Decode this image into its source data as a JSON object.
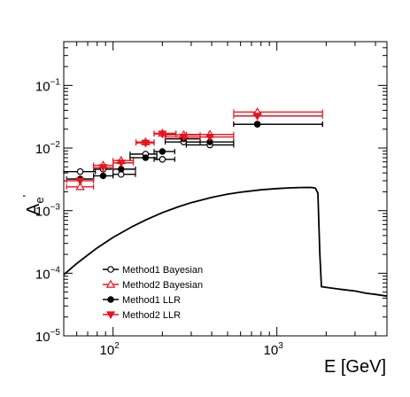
{
  "chart_data": {
    "type": "scatter",
    "xlabel": "E [GeV]",
    "ylabel_base": "A",
    "ylabel_sub": "e",
    "ylabel_sup": "'",
    "x_scale": "log",
    "y_scale": "log",
    "xlim": [
      50,
      4700
    ],
    "ylim": [
      1e-05,
      0.5
    ],
    "x_ticks": [
      {
        "value": 100,
        "base": "10",
        "exp": "2"
      },
      {
        "value": 1000,
        "base": "10",
        "exp": "3"
      }
    ],
    "y_ticks": [
      {
        "value": 1e-05,
        "base": "10",
        "exp": "−5"
      },
      {
        "value": 0.0001,
        "base": "10",
        "exp": "−4"
      },
      {
        "value": 0.001,
        "base": "10",
        "exp": "−3"
      },
      {
        "value": 0.01,
        "base": "10",
        "exp": "−2"
      },
      {
        "value": 0.1,
        "base": "10",
        "exp": "−1"
      }
    ],
    "grid": false,
    "legend_position": "bottom-left",
    "series": [
      {
        "name": "Method1 Bayesian",
        "color": "#000000",
        "marker": "open-circle",
        "points": [
          {
            "x": 63,
            "xlo": 50,
            "xhi": 78,
            "y": 0.0042,
            "ylo": 0.0038,
            "yhi": 0.0046
          },
          {
            "x": 87,
            "xlo": 76,
            "xhi": 100,
            "y": 0.0046,
            "ylo": 0.0043,
            "yhi": 0.0049
          },
          {
            "x": 112,
            "xlo": 100,
            "xhi": 137,
            "y": 0.0038,
            "ylo": 0.0036,
            "yhi": 0.004
          },
          {
            "x": 158,
            "xlo": 127,
            "xhi": 185,
            "y": 0.008,
            "ylo": 0.0076,
            "yhi": 0.0084
          },
          {
            "x": 200,
            "xlo": 178,
            "xhi": 238,
            "y": 0.0066,
            "ylo": 0.0063,
            "yhi": 0.0069
          },
          {
            "x": 270,
            "xlo": 208,
            "xhi": 340,
            "y": 0.0125,
            "ylo": 0.012,
            "yhi": 0.013
          },
          {
            "x": 390,
            "xlo": 280,
            "xhi": 545,
            "y": 0.0112,
            "ylo": 0.0108,
            "yhi": 0.0116
          },
          {
            "x": 760,
            "xlo": 545,
            "xhi": 1900,
            "y": 0.024,
            "ylo": 0.0232,
            "yhi": 0.0248
          }
        ]
      },
      {
        "name": "Method2 Bayesian",
        "color": "#e8141e",
        "marker": "open-triangle",
        "points": [
          {
            "x": 63,
            "xlo": 52,
            "xhi": 76,
            "y": 0.0024,
            "ylo": 0.0022,
            "yhi": 0.0026
          },
          {
            "x": 87,
            "xlo": 76,
            "xhi": 100,
            "y": 0.0053,
            "ylo": 0.005,
            "yhi": 0.0056
          },
          {
            "x": 112,
            "xlo": 100,
            "xhi": 133,
            "y": 0.0063,
            "ylo": 0.006,
            "yhi": 0.0066
          },
          {
            "x": 158,
            "xlo": 138,
            "xhi": 178,
            "y": 0.0125,
            "ylo": 0.012,
            "yhi": 0.013
          },
          {
            "x": 200,
            "xlo": 178,
            "xhi": 242,
            "y": 0.0172,
            "ylo": 0.0166,
            "yhi": 0.0178
          },
          {
            "x": 270,
            "xlo": 208,
            "xhi": 340,
            "y": 0.0162,
            "ylo": 0.0156,
            "yhi": 0.0168
          },
          {
            "x": 390,
            "xlo": 280,
            "xhi": 545,
            "y": 0.0165,
            "ylo": 0.0159,
            "yhi": 0.0171
          },
          {
            "x": 760,
            "xlo": 545,
            "xhi": 1900,
            "y": 0.0375,
            "ylo": 0.0362,
            "yhi": 0.0388
          }
        ]
      },
      {
        "name": "Method1 LLR",
        "color": "#000000",
        "marker": "filled-circle",
        "points": [
          {
            "x": 63,
            "xlo": 52,
            "xhi": 76,
            "y": 0.0032,
            "ylo": 0.003,
            "yhi": 0.0034
          },
          {
            "x": 87,
            "xlo": 76,
            "xhi": 100,
            "y": 0.0036,
            "ylo": 0.0034,
            "yhi": 0.0038
          },
          {
            "x": 112,
            "xlo": 100,
            "xhi": 137,
            "y": 0.0046,
            "ylo": 0.0044,
            "yhi": 0.0048
          },
          {
            "x": 158,
            "xlo": 127,
            "xhi": 185,
            "y": 0.007,
            "ylo": 0.0067,
            "yhi": 0.0073
          },
          {
            "x": 200,
            "xlo": 178,
            "xhi": 238,
            "y": 0.0088,
            "ylo": 0.0085,
            "yhi": 0.0091
          },
          {
            "x": 270,
            "xlo": 208,
            "xhi": 340,
            "y": 0.014,
            "ylo": 0.0135,
            "yhi": 0.0145
          },
          {
            "x": 390,
            "xlo": 280,
            "xhi": 545,
            "y": 0.0125,
            "ylo": 0.012,
            "yhi": 0.013
          },
          {
            "x": 760,
            "xlo": 545,
            "xhi": 1900,
            "y": 0.024,
            "ylo": 0.0232,
            "yhi": 0.0248
          }
        ]
      },
      {
        "name": "Method2 LLR",
        "color": "#e8141e",
        "marker": "filled-triangle-down",
        "points": [
          {
            "x": 63,
            "xlo": 52,
            "xhi": 76,
            "y": 0.003,
            "ylo": 0.0028,
            "yhi": 0.0032
          },
          {
            "x": 87,
            "xlo": 76,
            "xhi": 100,
            "y": 0.0049,
            "ylo": 0.0046,
            "yhi": 0.0052
          },
          {
            "x": 112,
            "xlo": 100,
            "xhi": 133,
            "y": 0.0058,
            "ylo": 0.0055,
            "yhi": 0.0061
          },
          {
            "x": 158,
            "xlo": 138,
            "xhi": 178,
            "y": 0.012,
            "ylo": 0.0115,
            "yhi": 0.0125
          },
          {
            "x": 200,
            "xlo": 178,
            "xhi": 242,
            "y": 0.0168,
            "ylo": 0.0162,
            "yhi": 0.0174
          },
          {
            "x": 270,
            "xlo": 208,
            "xhi": 340,
            "y": 0.015,
            "ylo": 0.0145,
            "yhi": 0.0155
          },
          {
            "x": 390,
            "xlo": 280,
            "xhi": 545,
            "y": 0.015,
            "ylo": 0.0145,
            "yhi": 0.0155
          },
          {
            "x": 760,
            "xlo": 545,
            "xhi": 1900,
            "y": 0.0325,
            "ylo": 0.0314,
            "yhi": 0.0336
          }
        ]
      }
    ],
    "curve": {
      "color": "#000000",
      "points": [
        [
          50,
          9.5e-05
        ],
        [
          60,
          0.000143
        ],
        [
          70,
          0.000195
        ],
        [
          80,
          0.000254
        ],
        [
          100,
          0.000374
        ],
        [
          130,
          0.00055
        ],
        [
          160,
          0.00072
        ],
        [
          200,
          0.00093
        ],
        [
          250,
          0.00115
        ],
        [
          300,
          0.00134
        ],
        [
          400,
          0.00163
        ],
        [
          500,
          0.00183
        ],
        [
          600,
          0.00197
        ],
        [
          800,
          0.00215
        ],
        [
          1000,
          0.00225
        ],
        [
          1200,
          0.00231
        ],
        [
          1400,
          0.00234
        ],
        [
          1550,
          0.00235
        ],
        [
          1650,
          0.00234
        ],
        [
          1720,
          0.00228
        ],
        [
          1780,
          0.0019
        ],
        [
          1830,
          0.0002
        ],
        [
          1870,
          6.1e-05
        ],
        [
          1950,
          6e-05
        ],
        [
          2500,
          5.5e-05
        ],
        [
          3000,
          5.2e-05
        ],
        [
          3500,
          4.8e-05
        ],
        [
          4000,
          4.6e-05
        ],
        [
          4700,
          4.3e-05
        ]
      ]
    }
  }
}
